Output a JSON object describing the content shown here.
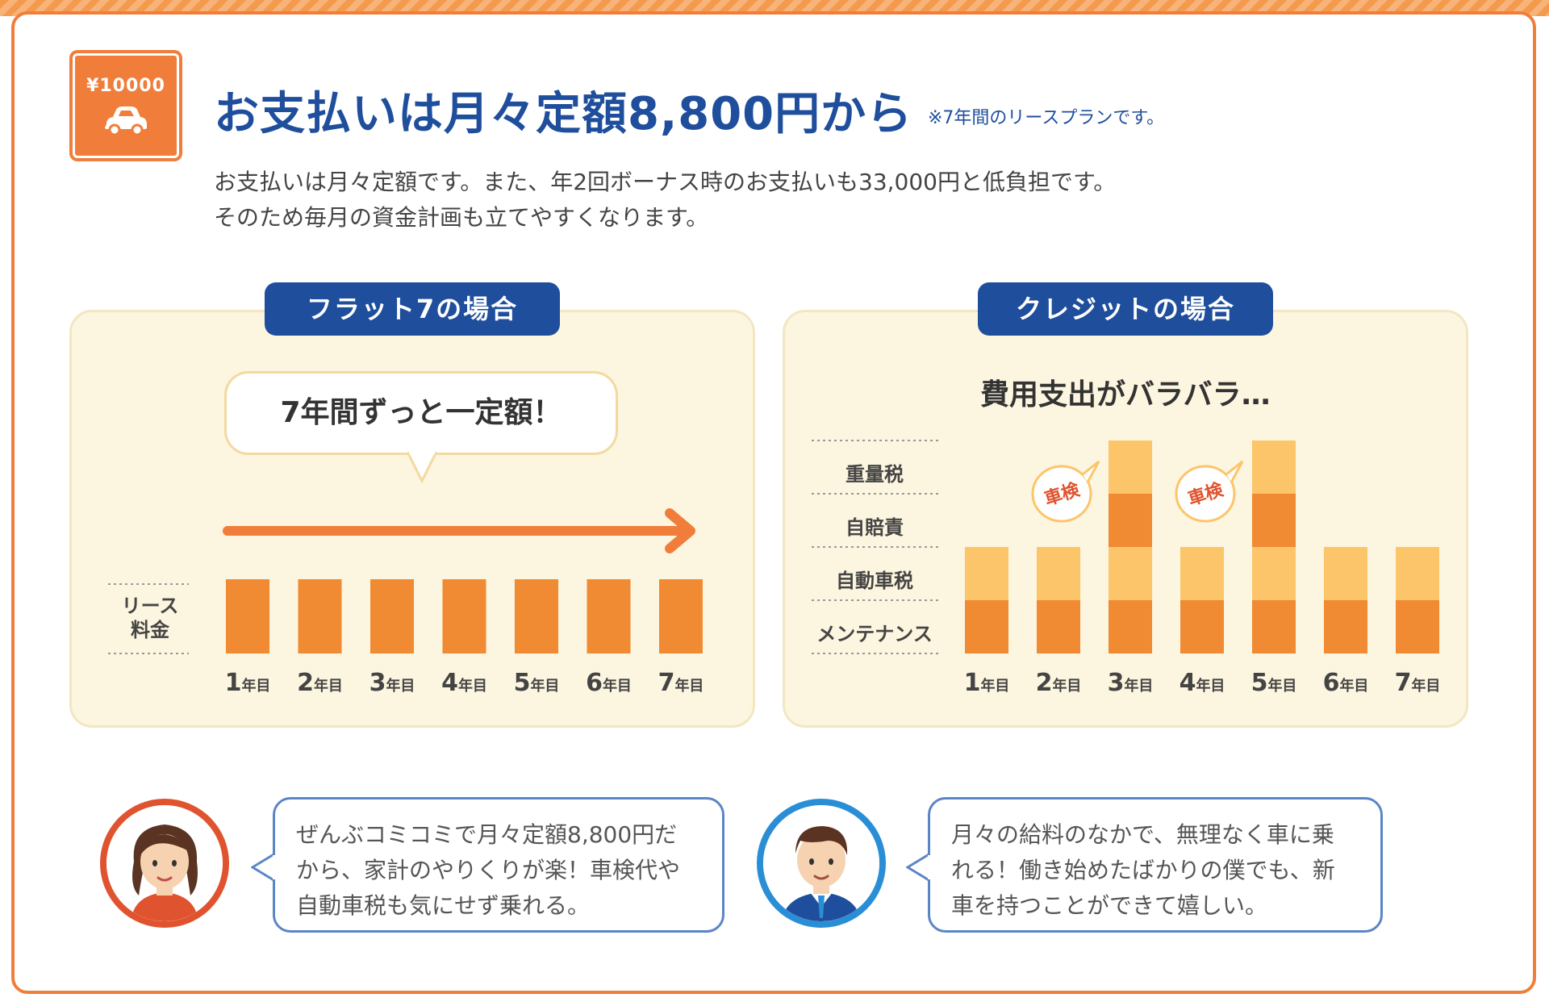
{
  "logo": {
    "price_label": "¥10000",
    "icon": "car-icon"
  },
  "headline": {
    "title": "お支払いは月々定額8,800円から",
    "note": "※7年間のリースプランです。"
  },
  "description": {
    "line1": "お支払いは月々定額です。また、年2回ボーナス時のお支払いも33,000円と低負担です。",
    "line2": "そのため毎月の資金計画も立てやすくなります。"
  },
  "left_panel": {
    "tab_label": "フラット7の場合",
    "bubble_text": "7年間ずっと一定額！",
    "row_label_line1": "リース",
    "row_label_line2": "料金"
  },
  "right_panel": {
    "tab_label": "クレジットの場合",
    "title": "費用支出がバラバラ…",
    "row_labels": [
      "重量税",
      "自賠責",
      "自動車税",
      "メンテナンス"
    ],
    "badge_label": "車検"
  },
  "chart_data": [
    {
      "type": "bar",
      "categories": [
        "1年目",
        "2年目",
        "3年目",
        "4年目",
        "5年目",
        "6年目",
        "7年目"
      ],
      "series": [
        {
          "name": "リース料金",
          "values": [
            1,
            1,
            1,
            1,
            1,
            1,
            1
          ]
        }
      ],
      "colors": [
        "#f08a33"
      ]
    },
    {
      "type": "bar",
      "stacked": true,
      "categories": [
        "1年目",
        "2年目",
        "3年目",
        "4年目",
        "5年目",
        "6年目",
        "7年目"
      ],
      "series": [
        {
          "name": "メンテナンス",
          "values": [
            1,
            1,
            1,
            1,
            1,
            1,
            1
          ]
        },
        {
          "name": "自動車税",
          "values": [
            1,
            1,
            1,
            1,
            1,
            1,
            1
          ]
        },
        {
          "name": "自賠責",
          "values": [
            0,
            0,
            1,
            0,
            1,
            0,
            0
          ]
        },
        {
          "name": "重量税",
          "values": [
            0,
            0,
            1,
            0,
            1,
            0,
            0
          ]
        }
      ],
      "annotations": [
        {
          "category": "2年目",
          "text": "車検"
        },
        {
          "category": "4年目",
          "text": "車検"
        }
      ],
      "colors": [
        "#f08a33",
        "#fcc56a",
        "#f08a33",
        "#fcc56a"
      ]
    }
  ],
  "testimonials": [
    {
      "avatar": "woman-avatar",
      "text_lines": [
        "ぜんぶコミコミで月々定額8,800円だ",
        "から、家計のやりくりが楽！車検代や",
        "自動車税も気にせず乗れる。"
      ]
    },
    {
      "avatar": "man-avatar",
      "text_lines": [
        "月々の給料のなかで、無理なく車に乗",
        "れる！働き始めたばかりの僕でも、新",
        "車を持つことができて嬉しい。"
      ]
    }
  ],
  "colors": {
    "orange": "#f07e3a",
    "bar_dark": "#f08a33",
    "bar_light": "#fcc56a",
    "navy": "#1f4e9c",
    "panel_bg": "#fcf5df"
  }
}
